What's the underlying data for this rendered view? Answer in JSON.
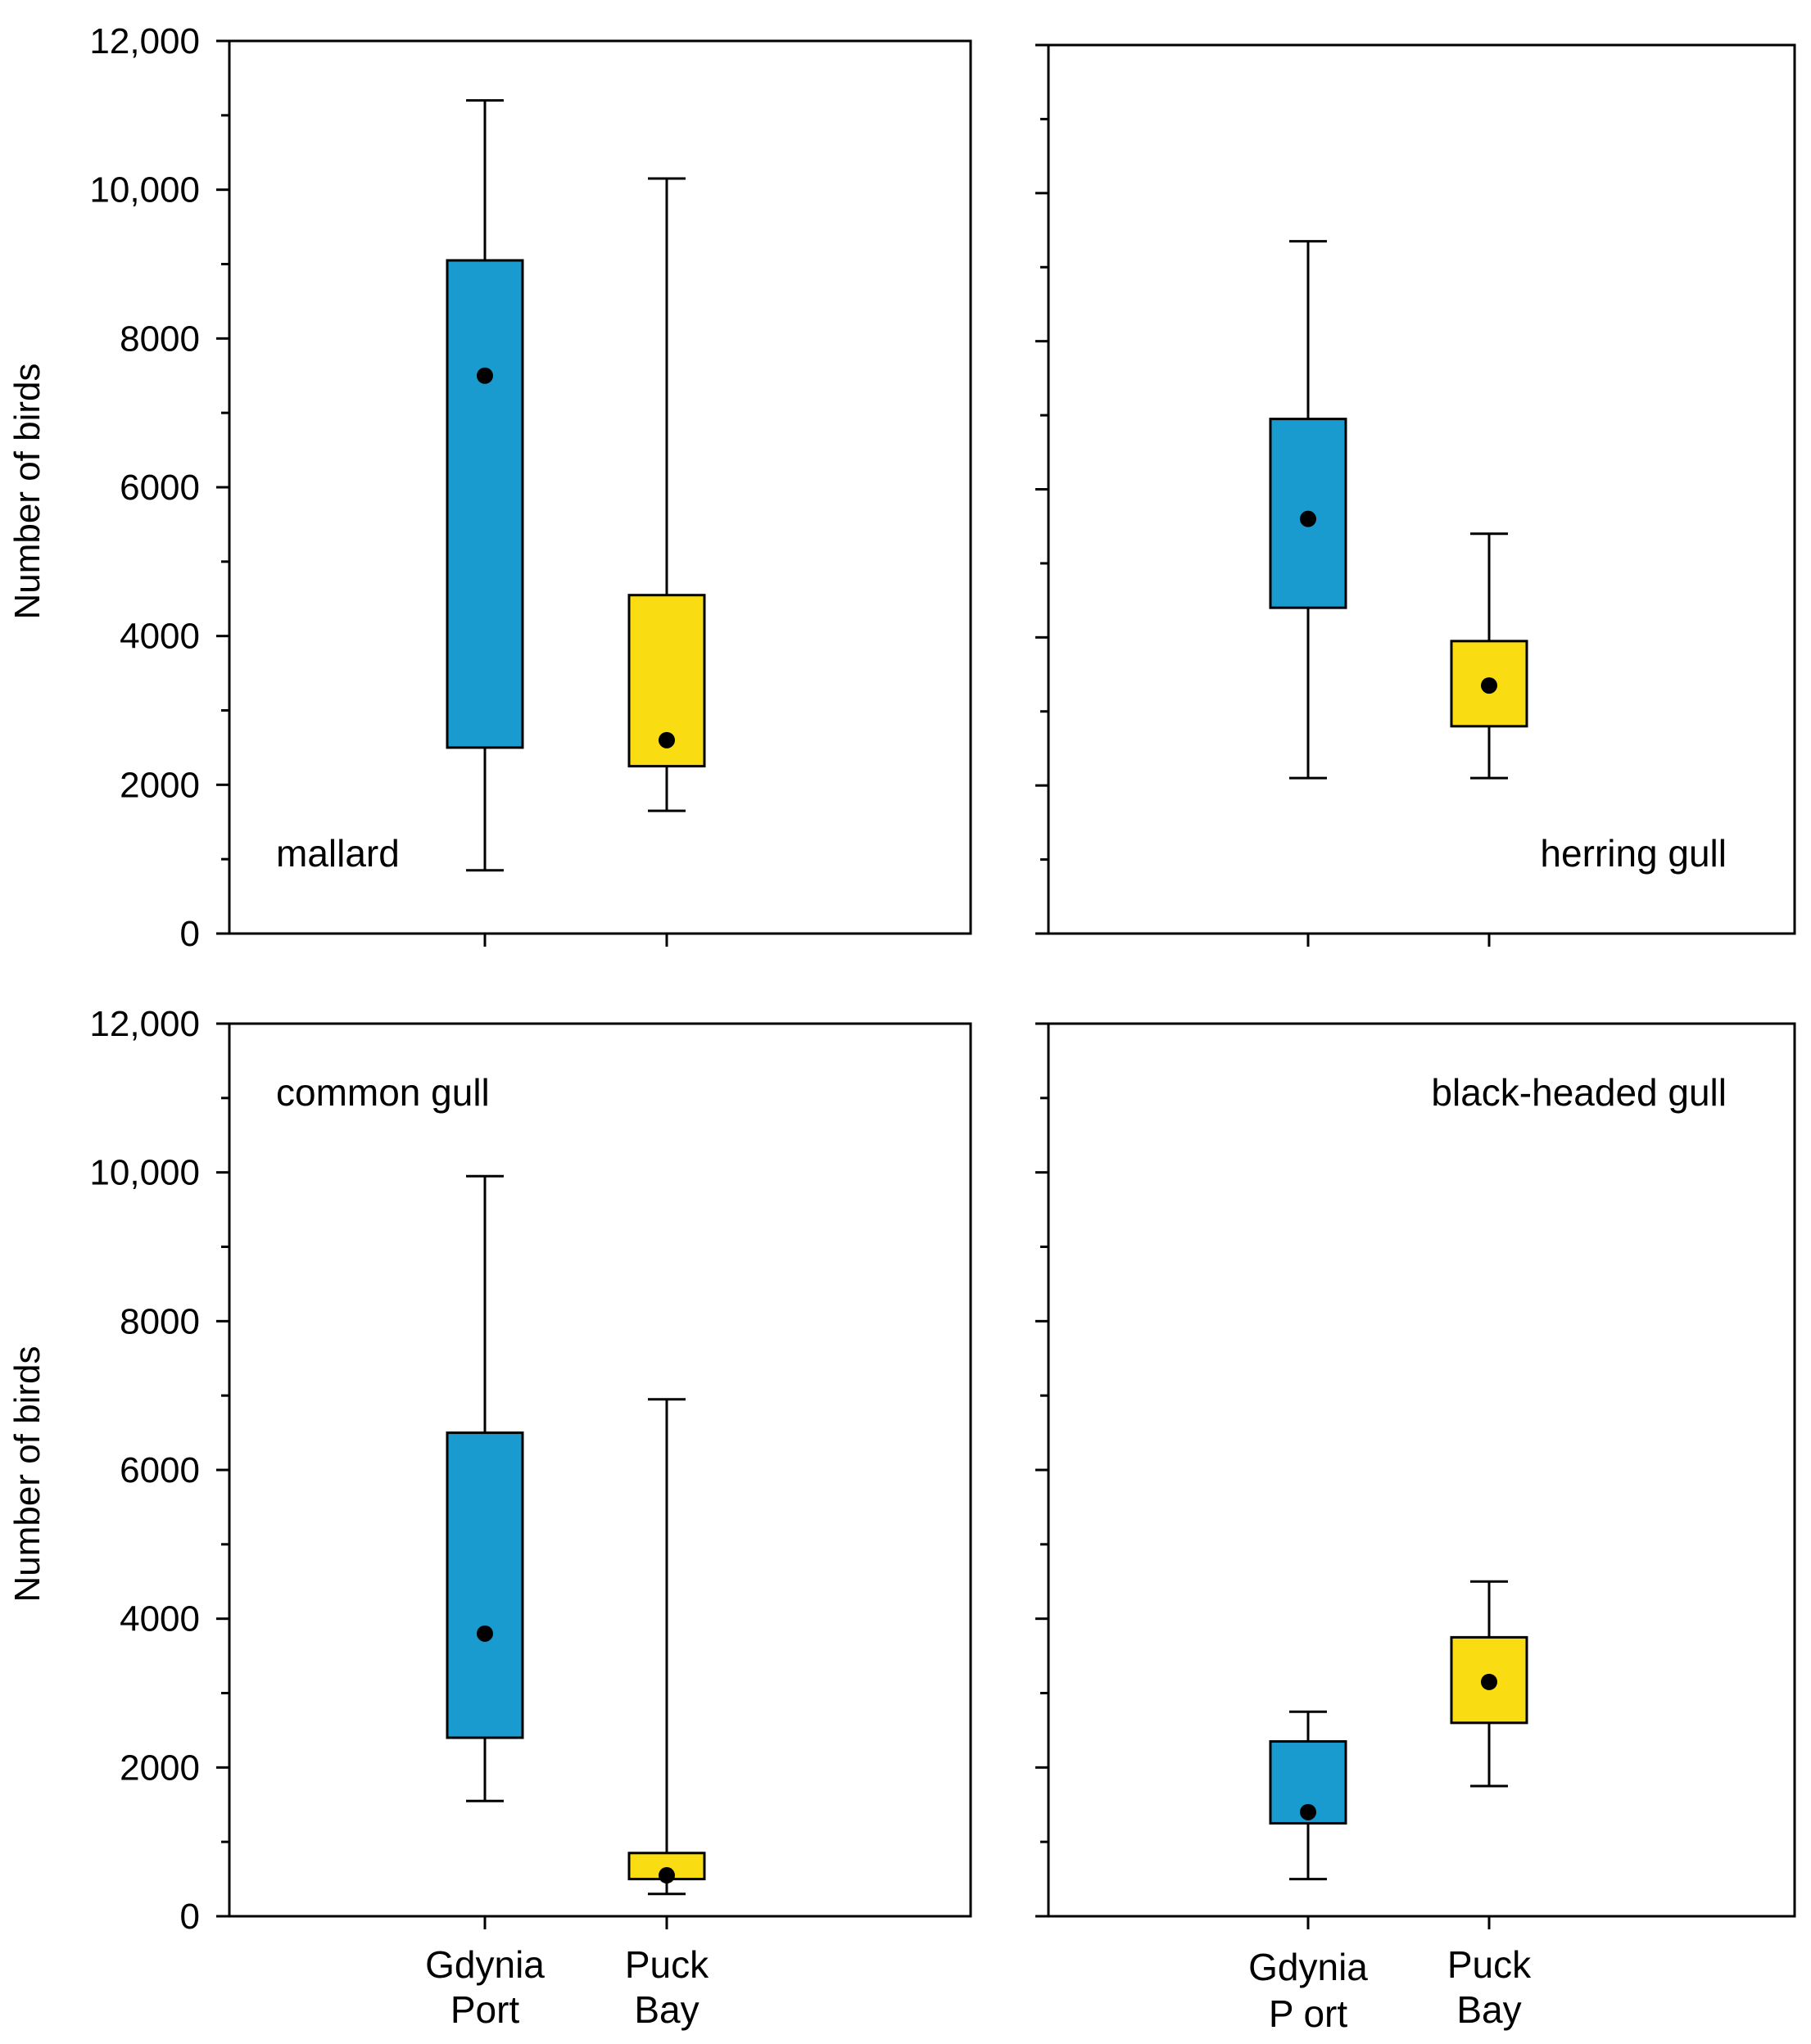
{
  "colors": {
    "gdynia_box": "#1a9bd0",
    "puck_box": "#f9dc12",
    "line": "#000000",
    "background": "#ffffff"
  },
  "y_axis": {
    "label": "Number of birds",
    "ticks": [
      0,
      2000,
      4000,
      6000,
      8000,
      10000,
      12000
    ],
    "tick_labels": [
      "0",
      "2000",
      "4000",
      "6000",
      "8000",
      "10,000",
      "12,000"
    ]
  },
  "x_axis": {
    "categories": [
      {
        "line1": "Gdynia",
        "line2": "Port"
      },
      {
        "line1": "Puck",
        "line2": "Bay"
      }
    ],
    "right_categories": [
      {
        "line1": "Gdynia",
        "line2": "P ort"
      },
      {
        "line1": "Puck",
        "line2": "Bay"
      }
    ]
  },
  "chart_data": [
    {
      "type": "box",
      "label": "mallard",
      "ylim": [
        0,
        12000
      ],
      "boxes": [
        {
          "category": "Gdynia Port",
          "min": 850,
          "q1": 2500,
          "median": 7500,
          "q3": 9050,
          "max": 11200
        },
        {
          "category": "Puck Bay",
          "min": 1650,
          "q1": 2250,
          "median": 2600,
          "q3": 4550,
          "max": 10150
        }
      ]
    },
    {
      "type": "box",
      "label": "herring gull",
      "ylim": [
        0,
        12000
      ],
      "boxes": [
        {
          "category": "Gdynia Port",
          "min": 2100,
          "q1": 4400,
          "median": 5600,
          "q3": 6950,
          "max": 9350
        },
        {
          "category": "Puck Bay",
          "min": 2100,
          "q1": 2800,
          "median": 3350,
          "q3": 3950,
          "max": 5400
        }
      ]
    },
    {
      "type": "box",
      "label": "common gull",
      "ylim": [
        0,
        12000
      ],
      "boxes": [
        {
          "category": "Gdynia Port",
          "min": 1550,
          "q1": 2400,
          "median": 3800,
          "q3": 6500,
          "max": 9950
        },
        {
          "category": "Puck Bay",
          "min": 300,
          "q1": 500,
          "median": 550,
          "q3": 850,
          "max": 6950
        }
      ]
    },
    {
      "type": "box",
      "label": "black-headed gull",
      "ylim": [
        0,
        12000
      ],
      "boxes": [
        {
          "category": "Gdynia Port",
          "min": 500,
          "q1": 1250,
          "median": 1400,
          "q3": 2350,
          "max": 2750
        },
        {
          "category": "Puck Bay",
          "min": 1750,
          "q1": 2600,
          "median": 3150,
          "q3": 3750,
          "max": 4500
        }
      ]
    }
  ]
}
